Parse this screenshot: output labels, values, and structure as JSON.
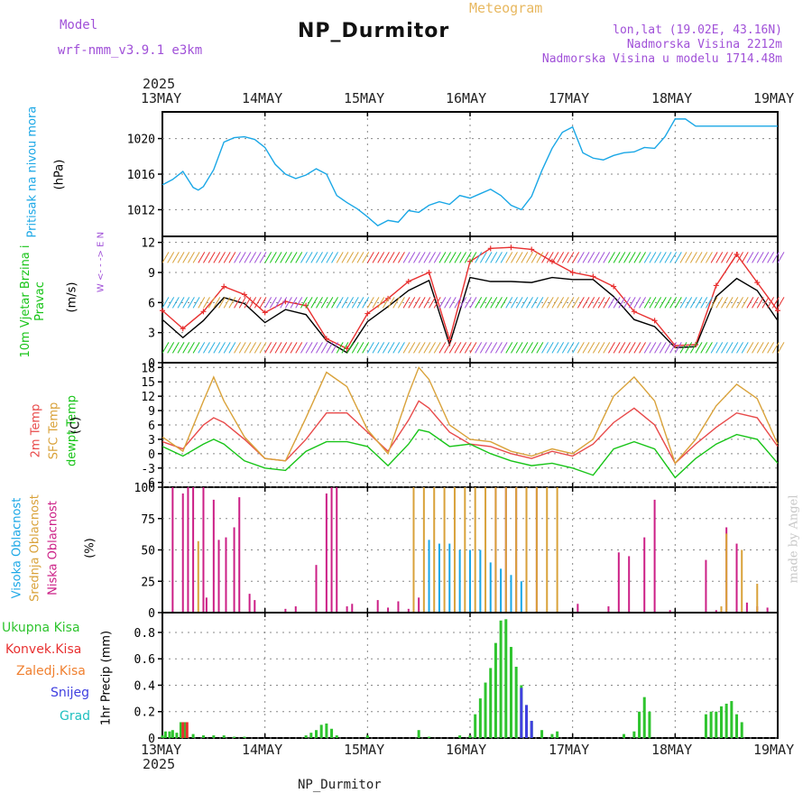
{
  "header": {
    "title": "NP_Durmitor",
    "subtitle": "Meteogram",
    "model_label": "Model",
    "model_value": "wrf-nmm_v3.9.1  e3km",
    "location_line": "lon,lat (19.02E, 43.16N)",
    "elevation_line": "Nadmorska Visina 2212m",
    "model_elevation_line": "Nadmorska Visina u modelu 1714.48m",
    "year": "2025",
    "footer_station": "NP_Durmitor",
    "credit": "made by Angel"
  },
  "colors": {
    "pressure": "#1aa7e6",
    "wind_speed": "#000000",
    "gust": "#e83030",
    "t2m": "#e84a4a",
    "tsfc": "#d9a23a",
    "dewpoint": "#18c418",
    "cloud_high": "#1aa7e6",
    "cloud_mid": "#d9a23a",
    "cloud_low": "#cc1f86",
    "precip_total": "#2ec42e",
    "precip_conv": "#e83030",
    "precip_frozen": "#f08030",
    "precip_snow": "#4040e0",
    "precip_graupel": "#20c0c0",
    "header_purple": "#a050d8",
    "header_orange": "#e8b860",
    "credit": "#c8c8c8"
  },
  "chart_data": [
    {
      "type": "line",
      "panel": "pressure",
      "ylabel_left": "Pritisak na nivou mora",
      "unit": "(hPa)",
      "x_dates": [
        "13MAY",
        "14MAY",
        "15MAY",
        "16MAY",
        "17MAY",
        "18MAY",
        "19MAY"
      ],
      "ylim": [
        1009,
        1023
      ],
      "yticks": [
        1012,
        1016,
        1020
      ],
      "x": [
        0,
        0.1,
        0.2,
        0.3,
        0.35,
        0.4,
        0.5,
        0.6,
        0.7,
        0.8,
        0.9,
        1.0,
        1.1,
        1.2,
        1.3,
        1.4,
        1.5,
        1.6,
        1.7,
        1.8,
        1.9,
        2.0,
        2.1,
        2.2,
        2.3,
        2.4,
        2.5,
        2.6,
        2.7,
        2.8,
        2.9,
        3.0,
        3.1,
        3.2,
        3.3,
        3.4,
        3.5,
        3.6,
        3.7,
        3.8,
        3.9,
        4.0,
        4.1,
        4.2,
        4.3,
        4.4,
        4.5,
        4.6,
        4.7,
        4.8,
        4.9,
        5.0,
        5.1,
        5.2,
        5.3,
        5.4,
        5.5,
        5.6,
        5.7,
        5.8,
        5.9,
        6.0
      ],
      "values": [
        1014.8,
        1015.4,
        1016.3,
        1014.5,
        1014.2,
        1014.6,
        1016.5,
        1019.6,
        1020.1,
        1020.2,
        1019.9,
        1019.0,
        1017.1,
        1016.0,
        1015.5,
        1015.9,
        1016.6,
        1016.0,
        1013.6,
        1012.8,
        1012.1,
        1011.2,
        1010.2,
        1010.8,
        1010.6,
        1011.9,
        1011.7,
        1012.5,
        1012.9,
        1012.6,
        1013.6,
        1013.3,
        1013.8,
        1014.3,
        1013.6,
        1012.5,
        1012.0,
        1013.5,
        1016.4,
        1018.9,
        1020.7,
        1021.3,
        1018.4,
        1017.8,
        1017.6,
        1018.1,
        1018.4,
        1018.5,
        1019.0,
        1018.9,
        1020.2,
        1022.2,
        1022.2,
        1021.4,
        1021.4,
        1021.4,
        1021.4,
        1021.4,
        1021.4,
        1021.4,
        1021.4,
        1021.4
      ]
    },
    {
      "type": "line",
      "panel": "wind",
      "ylabel_left": "10m Vjetar Brzina i Pravac",
      "unit": "(m/s)",
      "direction_legend": "W <- - -> E  N",
      "ylim": [
        0,
        12.6
      ],
      "yticks": [
        0,
        3,
        6,
        9,
        12
      ],
      "x": [
        0,
        0.2,
        0.4,
        0.6,
        0.8,
        1.0,
        1.2,
        1.4,
        1.6,
        1.8,
        2.0,
        2.2,
        2.4,
        2.6,
        2.8,
        3.0,
        3.2,
        3.4,
        3.6,
        3.8,
        4.0,
        4.2,
        4.4,
        4.6,
        4.8,
        5.0,
        5.2,
        5.4,
        5.6,
        5.8,
        6.0
      ],
      "series": [
        {
          "name": "Wind speed",
          "values": [
            4.3,
            2.5,
            4.2,
            6.5,
            5.9,
            4.0,
            5.3,
            4.8,
            2.2,
            1.0,
            4.1,
            5.6,
            7.2,
            8.2,
            1.8,
            8.5,
            8.1,
            8.1,
            8.0,
            8.5,
            8.3,
            8.3,
            6.6,
            4.3,
            3.6,
            1.5,
            1.6,
            6.6,
            8.4,
            7.2,
            4.2
          ]
        },
        {
          "name": "Gust",
          "values": [
            5.2,
            3.4,
            5.1,
            7.6,
            6.8,
            5.0,
            6.1,
            5.7,
            2.4,
            1.4,
            4.9,
            6.4,
            8.1,
            9.0,
            2.3,
            10.1,
            11.4,
            11.5,
            11.3,
            10.1,
            9.0,
            8.6,
            7.6,
            5.1,
            4.2,
            1.7,
            1.8,
            7.7,
            10.8,
            8.0,
            5.2
          ]
        }
      ]
    },
    {
      "type": "line",
      "panel": "temperature",
      "ylabel_left": [
        "2m Temp",
        "SFC Temp",
        "dewpt Temp"
      ],
      "unit": "(C)",
      "ylim": [
        -7,
        19
      ],
      "yticks": [
        -6,
        -3,
        0,
        3,
        6,
        9,
        12,
        15,
        18
      ],
      "x": [
        0,
        0.2,
        0.4,
        0.5,
        0.6,
        0.8,
        1.0,
        1.2,
        1.4,
        1.6,
        1.8,
        2.0,
        2.2,
        2.4,
        2.5,
        2.6,
        2.8,
        3.0,
        3.2,
        3.4,
        3.6,
        3.8,
        4.0,
        4.2,
        4.4,
        4.6,
        4.8,
        5.0,
        5.2,
        5.4,
        5.6,
        5.8,
        6.0
      ],
      "series": [
        {
          "name": "2m Temp",
          "values": [
            2.5,
            1.0,
            6.0,
            7.5,
            6.5,
            3.0,
            -1.0,
            -1.5,
            3.0,
            8.5,
            8.5,
            4.5,
            0.5,
            7.0,
            11.0,
            9.5,
            4.5,
            2.0,
            1.5,
            0.0,
            -1.0,
            0.5,
            -0.5,
            2.0,
            6.5,
            9.5,
            6.0,
            -2.0,
            2.0,
            5.5,
            8.5,
            7.5,
            1.5
          ]
        },
        {
          "name": "SFC Temp",
          "values": [
            3.5,
            0.5,
            11.0,
            16.0,
            11.0,
            3.5,
            -1.0,
            -1.5,
            7.5,
            17.0,
            14.0,
            5.0,
            0.0,
            12.5,
            18.0,
            15.5,
            6.0,
            3.0,
            2.5,
            0.5,
            -0.5,
            1.0,
            0.0,
            3.0,
            12.0,
            16.0,
            11.0,
            -2.0,
            3.0,
            10.0,
            14.5,
            11.5,
            2.0
          ]
        },
        {
          "name": "dewpt Temp",
          "values": [
            1.5,
            -0.5,
            2.0,
            3.0,
            2.0,
            -1.5,
            -3.0,
            -3.5,
            0.5,
            2.5,
            2.5,
            1.5,
            -2.5,
            2.0,
            5.0,
            4.5,
            1.5,
            2.0,
            0.0,
            -1.5,
            -2.5,
            -2.0,
            -3.0,
            -4.5,
            1.0,
            2.5,
            1.0,
            -5.0,
            -1.0,
            2.0,
            4.0,
            3.0,
            -2.0
          ]
        }
      ]
    },
    {
      "type": "bar",
      "panel": "clouds",
      "ylabel_left": [
        "Visoka Oblacnost",
        "Srednja Oblacnost",
        "Niska Oblacnost"
      ],
      "unit": "(%)",
      "ylim": [
        0,
        100
      ],
      "yticks": [
        0,
        25,
        50,
        75,
        100
      ],
      "series": [
        {
          "name": "Niska Oblacnost",
          "x": [
            0.1,
            0.2,
            0.25,
            0.3,
            0.4,
            0.43,
            0.5,
            0.55,
            0.62,
            0.7,
            0.75,
            0.85,
            0.9,
            1.2,
            1.3,
            1.5,
            1.6,
            1.65,
            1.7,
            1.8,
            1.85,
            2.1,
            2.2,
            2.3,
            2.4,
            2.5,
            3.25,
            3.35,
            3.45,
            3.55,
            3.65,
            4.05,
            4.35,
            4.45,
            4.55,
            4.7,
            4.8,
            4.95,
            5.3,
            5.4,
            5.5,
            5.6,
            5.7,
            5.8,
            5.9
          ],
          "values": [
            100,
            95,
            100,
            100,
            100,
            12,
            90,
            58,
            60,
            68,
            92,
            15,
            10,
            3,
            5,
            38,
            95,
            100,
            100,
            5,
            7,
            10,
            4,
            9,
            3,
            12,
            100,
            100,
            100,
            100,
            100,
            7,
            5,
            48,
            45,
            60,
            90,
            2,
            42,
            2,
            68,
            55,
            8,
            5,
            4
          ]
        },
        {
          "name": "Srednja Oblacnost",
          "x": [
            0.35,
            2.45,
            2.55,
            2.65,
            2.75,
            2.85,
            2.95,
            3.05,
            3.15,
            3.25,
            3.35,
            3.45,
            3.55,
            3.65,
            3.75,
            3.85,
            5.45,
            5.5,
            5.65,
            5.8
          ],
          "values": [
            57,
            100,
            100,
            100,
            100,
            100,
            100,
            100,
            100,
            100,
            100,
            100,
            100,
            100,
            100,
            100,
            5,
            63,
            50,
            23
          ]
        },
        {
          "name": "Visoka Oblacnost",
          "x": [
            2.6,
            2.7,
            2.8,
            2.9,
            3.0,
            3.1,
            3.2,
            3.3,
            3.4,
            3.5
          ],
          "values": [
            58,
            55,
            55,
            50,
            50,
            50,
            40,
            35,
            30,
            25
          ]
        }
      ]
    },
    {
      "type": "bar",
      "panel": "precipitation",
      "ylabel_left": "1hr Precip (mm)",
      "legend": [
        "Ukupna Kisa",
        "Konvek.Kisa",
        "Zaledj.Kisa",
        "Snijeg",
        "Grad"
      ],
      "ylim": [
        0,
        0.95
      ],
      "yticks": [
        0,
        0.2,
        0.4,
        0.6,
        0.8
      ],
      "series": [
        {
          "name": "Ukupna Kisa",
          "x": [
            0.0,
            0.03,
            0.07,
            0.1,
            0.14,
            0.18,
            0.22,
            0.3,
            0.4,
            0.5,
            0.6,
            0.7,
            0.8,
            1.4,
            1.45,
            1.5,
            1.55,
            1.6,
            1.65,
            1.7,
            2.0,
            2.5,
            2.6,
            2.9,
            3.0,
            3.05,
            3.1,
            3.15,
            3.2,
            3.25,
            3.3,
            3.35,
            3.4,
            3.45,
            3.5,
            3.55,
            3.6,
            3.7,
            3.8,
            3.85,
            4.5,
            4.6,
            4.65,
            4.7,
            4.75,
            5.3,
            5.35,
            5.4,
            5.45,
            5.5,
            5.55,
            5.6,
            5.65
          ],
          "values": [
            0.02,
            0.05,
            0.05,
            0.06,
            0.04,
            0.12,
            0.12,
            0.03,
            0.02,
            0.02,
            0.02,
            0.01,
            0.01,
            0.02,
            0.04,
            0.06,
            0.1,
            0.11,
            0.07,
            0.02,
            0.02,
            0.06,
            0.01,
            0.02,
            0.02,
            0.18,
            0.3,
            0.42,
            0.53,
            0.72,
            0.89,
            0.9,
            0.69,
            0.54,
            0.4,
            0.25,
            0.13,
            0.06,
            0.03,
            0.05,
            0.03,
            0.05,
            0.2,
            0.31,
            0.2,
            0.18,
            0.2,
            0.2,
            0.24,
            0.26,
            0.28,
            0.18,
            0.12
          ]
        },
        {
          "name": "Konvek.Kisa",
          "x": [
            0.2,
            0.24
          ],
          "values": [
            0.12,
            0.12
          ]
        },
        {
          "name": "Snijeg",
          "x": [
            3.5,
            3.55,
            3.6
          ],
          "values": [
            0.38,
            0.25,
            0.13
          ]
        }
      ]
    }
  ]
}
